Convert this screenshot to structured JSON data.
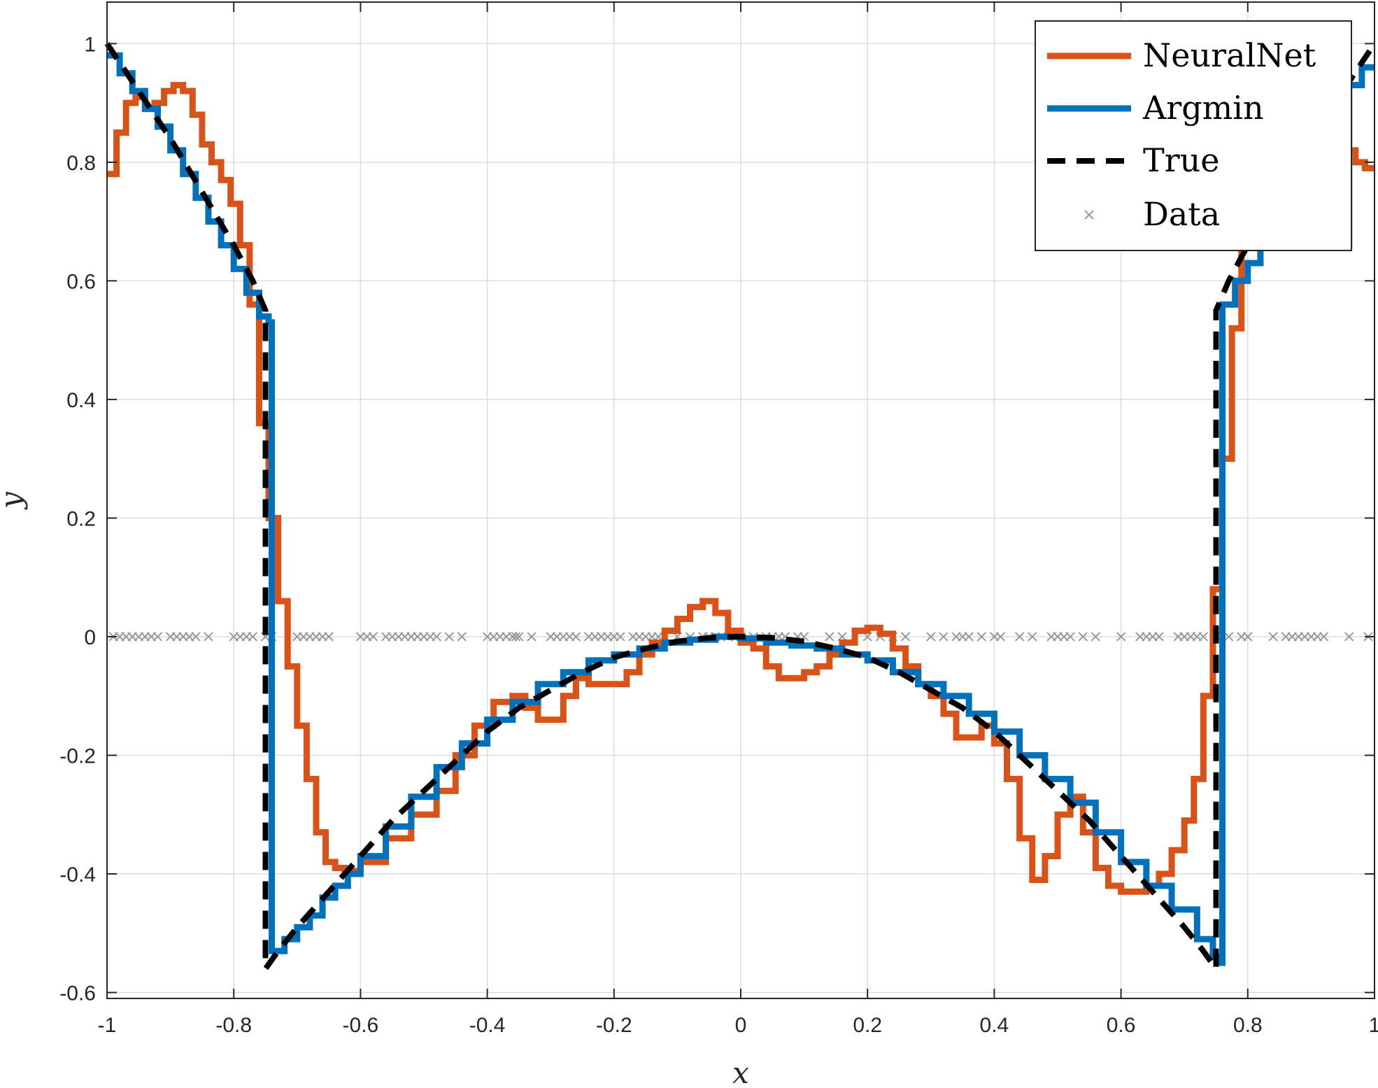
{
  "chart_data": {
    "type": "line",
    "title": "",
    "xlabel": "x",
    "ylabel": "y",
    "xlim": [
      -1,
      1
    ],
    "ylim": [
      -0.61,
      1.07
    ],
    "xticks": [
      -1,
      -0.8,
      -0.6,
      -0.4,
      -0.2,
      0,
      0.2,
      0.4,
      0.6,
      0.8,
      1
    ],
    "xtick_labels": [
      "-1",
      "-0.8",
      "-0.6",
      "-0.4",
      "-0.2",
      "0",
      "0.2",
      "0.4",
      "0.6",
      "0.8",
      "1"
    ],
    "yticks": [
      -0.6,
      -0.4,
      -0.2,
      0,
      0.2,
      0.4,
      0.6,
      0.8,
      1
    ],
    "ytick_labels": [
      "-0.6",
      "-0.4",
      "-0.2",
      "0",
      "0.2",
      "0.4",
      "0.6",
      "0.8",
      "1"
    ],
    "grid": true,
    "legend_position": "top-right",
    "series": [
      {
        "name": "NeuralNet",
        "style": "stairs",
        "color": "#D95319",
        "x": [
          -1.0,
          -0.985,
          -0.97,
          -0.955,
          -0.94,
          -0.925,
          -0.91,
          -0.895,
          -0.88,
          -0.865,
          -0.85,
          -0.835,
          -0.82,
          -0.805,
          -0.79,
          -0.775,
          -0.76,
          -0.745,
          -0.73,
          -0.715,
          -0.7,
          -0.685,
          -0.67,
          -0.655,
          -0.64,
          -0.625,
          -0.6,
          -0.56,
          -0.52,
          -0.48,
          -0.45,
          -0.42,
          -0.39,
          -0.36,
          -0.34,
          -0.32,
          -0.3,
          -0.28,
          -0.26,
          -0.24,
          -0.22,
          -0.2,
          -0.18,
          -0.16,
          -0.14,
          -0.12,
          -0.1,
          -0.08,
          -0.06,
          -0.04,
          -0.02,
          0.0,
          0.02,
          0.04,
          0.06,
          0.08,
          0.1,
          0.12,
          0.14,
          0.16,
          0.18,
          0.2,
          0.22,
          0.24,
          0.26,
          0.28,
          0.3,
          0.32,
          0.34,
          0.36,
          0.38,
          0.4,
          0.42,
          0.44,
          0.46,
          0.48,
          0.5,
          0.52,
          0.54,
          0.56,
          0.58,
          0.6,
          0.62,
          0.64,
          0.66,
          0.68,
          0.7,
          0.715,
          0.73,
          0.745,
          0.76,
          0.775,
          0.79,
          0.805,
          0.82,
          0.86,
          0.9,
          0.94,
          0.97,
          0.985
        ],
        "y": [
          0.78,
          0.85,
          0.9,
          0.91,
          0.89,
          0.9,
          0.92,
          0.93,
          0.92,
          0.88,
          0.83,
          0.8,
          0.77,
          0.73,
          0.66,
          0.56,
          0.36,
          0.2,
          0.06,
          -0.05,
          -0.15,
          -0.24,
          -0.33,
          -0.38,
          -0.39,
          -0.395,
          -0.38,
          -0.34,
          -0.3,
          -0.26,
          -0.2,
          -0.15,
          -0.11,
          -0.1,
          -0.12,
          -0.14,
          -0.14,
          -0.1,
          -0.07,
          -0.08,
          -0.08,
          -0.08,
          -0.06,
          -0.03,
          -0.01,
          0.01,
          0.03,
          0.05,
          0.06,
          0.04,
          0.01,
          -0.01,
          -0.02,
          -0.05,
          -0.07,
          -0.07,
          -0.06,
          -0.05,
          -0.03,
          -0.01,
          0.01,
          0.015,
          0.005,
          -0.02,
          -0.05,
          -0.08,
          -0.1,
          -0.13,
          -0.17,
          -0.17,
          -0.15,
          -0.18,
          -0.24,
          -0.34,
          -0.41,
          -0.37,
          -0.3,
          -0.27,
          -0.33,
          -0.39,
          -0.42,
          -0.43,
          -0.43,
          -0.42,
          -0.4,
          -0.36,
          -0.31,
          -0.24,
          -0.1,
          0.08,
          0.3,
          0.52,
          0.66,
          0.73,
          0.79,
          0.86,
          0.85,
          0.82,
          0.8,
          0.79
        ]
      },
      {
        "name": "Argmin",
        "style": "stairs",
        "color": "#0072BD",
        "x": [
          -1.0,
          -0.98,
          -0.96,
          -0.94,
          -0.92,
          -0.9,
          -0.88,
          -0.86,
          -0.84,
          -0.82,
          -0.8,
          -0.78,
          -0.76,
          -0.745,
          -0.74,
          -0.72,
          -0.7,
          -0.68,
          -0.66,
          -0.64,
          -0.62,
          -0.6,
          -0.56,
          -0.52,
          -0.48,
          -0.44,
          -0.4,
          -0.36,
          -0.32,
          -0.28,
          -0.24,
          -0.2,
          -0.16,
          -0.12,
          -0.08,
          -0.04,
          0.0,
          0.04,
          0.08,
          0.12,
          0.16,
          0.2,
          0.24,
          0.28,
          0.32,
          0.36,
          0.4,
          0.44,
          0.48,
          0.52,
          0.56,
          0.6,
          0.64,
          0.68,
          0.72,
          0.745,
          0.755,
          0.76,
          0.78,
          0.8,
          0.82,
          0.96,
          0.98
        ],
        "y": [
          0.98,
          0.95,
          0.92,
          0.89,
          0.86,
          0.82,
          0.78,
          0.74,
          0.7,
          0.66,
          0.62,
          0.58,
          0.54,
          0.53,
          -0.53,
          -0.51,
          -0.49,
          -0.47,
          -0.44,
          -0.42,
          -0.4,
          -0.37,
          -0.32,
          -0.27,
          -0.22,
          -0.18,
          -0.14,
          -0.11,
          -0.08,
          -0.06,
          -0.04,
          -0.03,
          -0.02,
          -0.01,
          -0.005,
          0.0,
          -0.003,
          -0.01,
          -0.015,
          -0.02,
          -0.03,
          -0.04,
          -0.06,
          -0.08,
          -0.1,
          -0.13,
          -0.16,
          -0.2,
          -0.24,
          -0.28,
          -0.33,
          -0.38,
          -0.42,
          -0.46,
          -0.51,
          -0.54,
          -0.55,
          0.56,
          0.6,
          0.63,
          0.66,
          0.93,
          0.96
        ]
      },
      {
        "name": "True",
        "style": "dashed",
        "color": "#000000",
        "x": [
          -1.0,
          -0.95,
          -0.9,
          -0.85,
          -0.8,
          -0.77,
          -0.75,
          -0.75,
          -0.73,
          -0.7,
          -0.65,
          -0.6,
          -0.55,
          -0.5,
          -0.45,
          -0.4,
          -0.35,
          -0.3,
          -0.25,
          -0.2,
          -0.15,
          -0.1,
          -0.05,
          0.0,
          0.05,
          0.1,
          0.15,
          0.2,
          0.25,
          0.3,
          0.35,
          0.4,
          0.45,
          0.5,
          0.55,
          0.6,
          0.65,
          0.7,
          0.73,
          0.75,
          0.75,
          0.77,
          0.8,
          0.85,
          0.9,
          0.95,
          1.0
        ],
        "y": [
          1.0,
          0.92,
          0.84,
          0.75,
          0.66,
          0.6,
          0.55,
          -0.56,
          -0.53,
          -0.49,
          -0.43,
          -0.37,
          -0.31,
          -0.26,
          -0.21,
          -0.16,
          -0.12,
          -0.09,
          -0.06,
          -0.035,
          -0.02,
          -0.008,
          -0.002,
          0.0,
          -0.002,
          -0.008,
          -0.02,
          -0.035,
          -0.06,
          -0.09,
          -0.12,
          -0.16,
          -0.21,
          -0.26,
          -0.31,
          -0.37,
          -0.43,
          -0.49,
          -0.53,
          -0.56,
          0.55,
          0.6,
          0.66,
          0.75,
          0.84,
          0.92,
          1.0
        ]
      },
      {
        "name": "Data",
        "style": "markers",
        "marker": "x",
        "color": "#999999",
        "x": [
          -0.99,
          -0.98,
          -0.97,
          -0.96,
          -0.95,
          -0.94,
          -0.93,
          -0.92,
          -0.9,
          -0.89,
          -0.88,
          -0.87,
          -0.86,
          -0.84,
          -0.8,
          -0.79,
          -0.78,
          -0.77,
          -0.75,
          -0.74,
          -0.7,
          -0.69,
          -0.68,
          -0.67,
          -0.66,
          -0.65,
          -0.6,
          -0.59,
          -0.58,
          -0.56,
          -0.55,
          -0.54,
          -0.53,
          -0.52,
          -0.51,
          -0.5,
          -0.49,
          -0.48,
          -0.46,
          -0.44,
          -0.4,
          -0.39,
          -0.38,
          -0.37,
          -0.36,
          -0.355,
          -0.35,
          -0.33,
          -0.3,
          -0.29,
          -0.28,
          -0.27,
          -0.26,
          -0.24,
          -0.23,
          -0.22,
          -0.21,
          -0.2,
          -0.19,
          -0.17,
          -0.16,
          -0.15,
          -0.14,
          -0.13,
          -0.12,
          -0.1,
          -0.08,
          -0.06,
          -0.05,
          -0.04,
          -0.02,
          0.0,
          0.02,
          0.04,
          0.05,
          0.06,
          0.07,
          0.09,
          0.1,
          0.14,
          0.16,
          0.2,
          0.22,
          0.24,
          0.26,
          0.3,
          0.32,
          0.34,
          0.35,
          0.36,
          0.38,
          0.4,
          0.41,
          0.44,
          0.46,
          0.49,
          0.5,
          0.51,
          0.52,
          0.54,
          0.56,
          0.6,
          0.63,
          0.64,
          0.65,
          0.66,
          0.69,
          0.7,
          0.71,
          0.72,
          0.73,
          0.75,
          0.77,
          0.79,
          0.8,
          0.84,
          0.86,
          0.87,
          0.88,
          0.89,
          0.9,
          0.91,
          0.92,
          0.96,
          0.99
        ],
        "y_constant": 0
      }
    ]
  }
}
